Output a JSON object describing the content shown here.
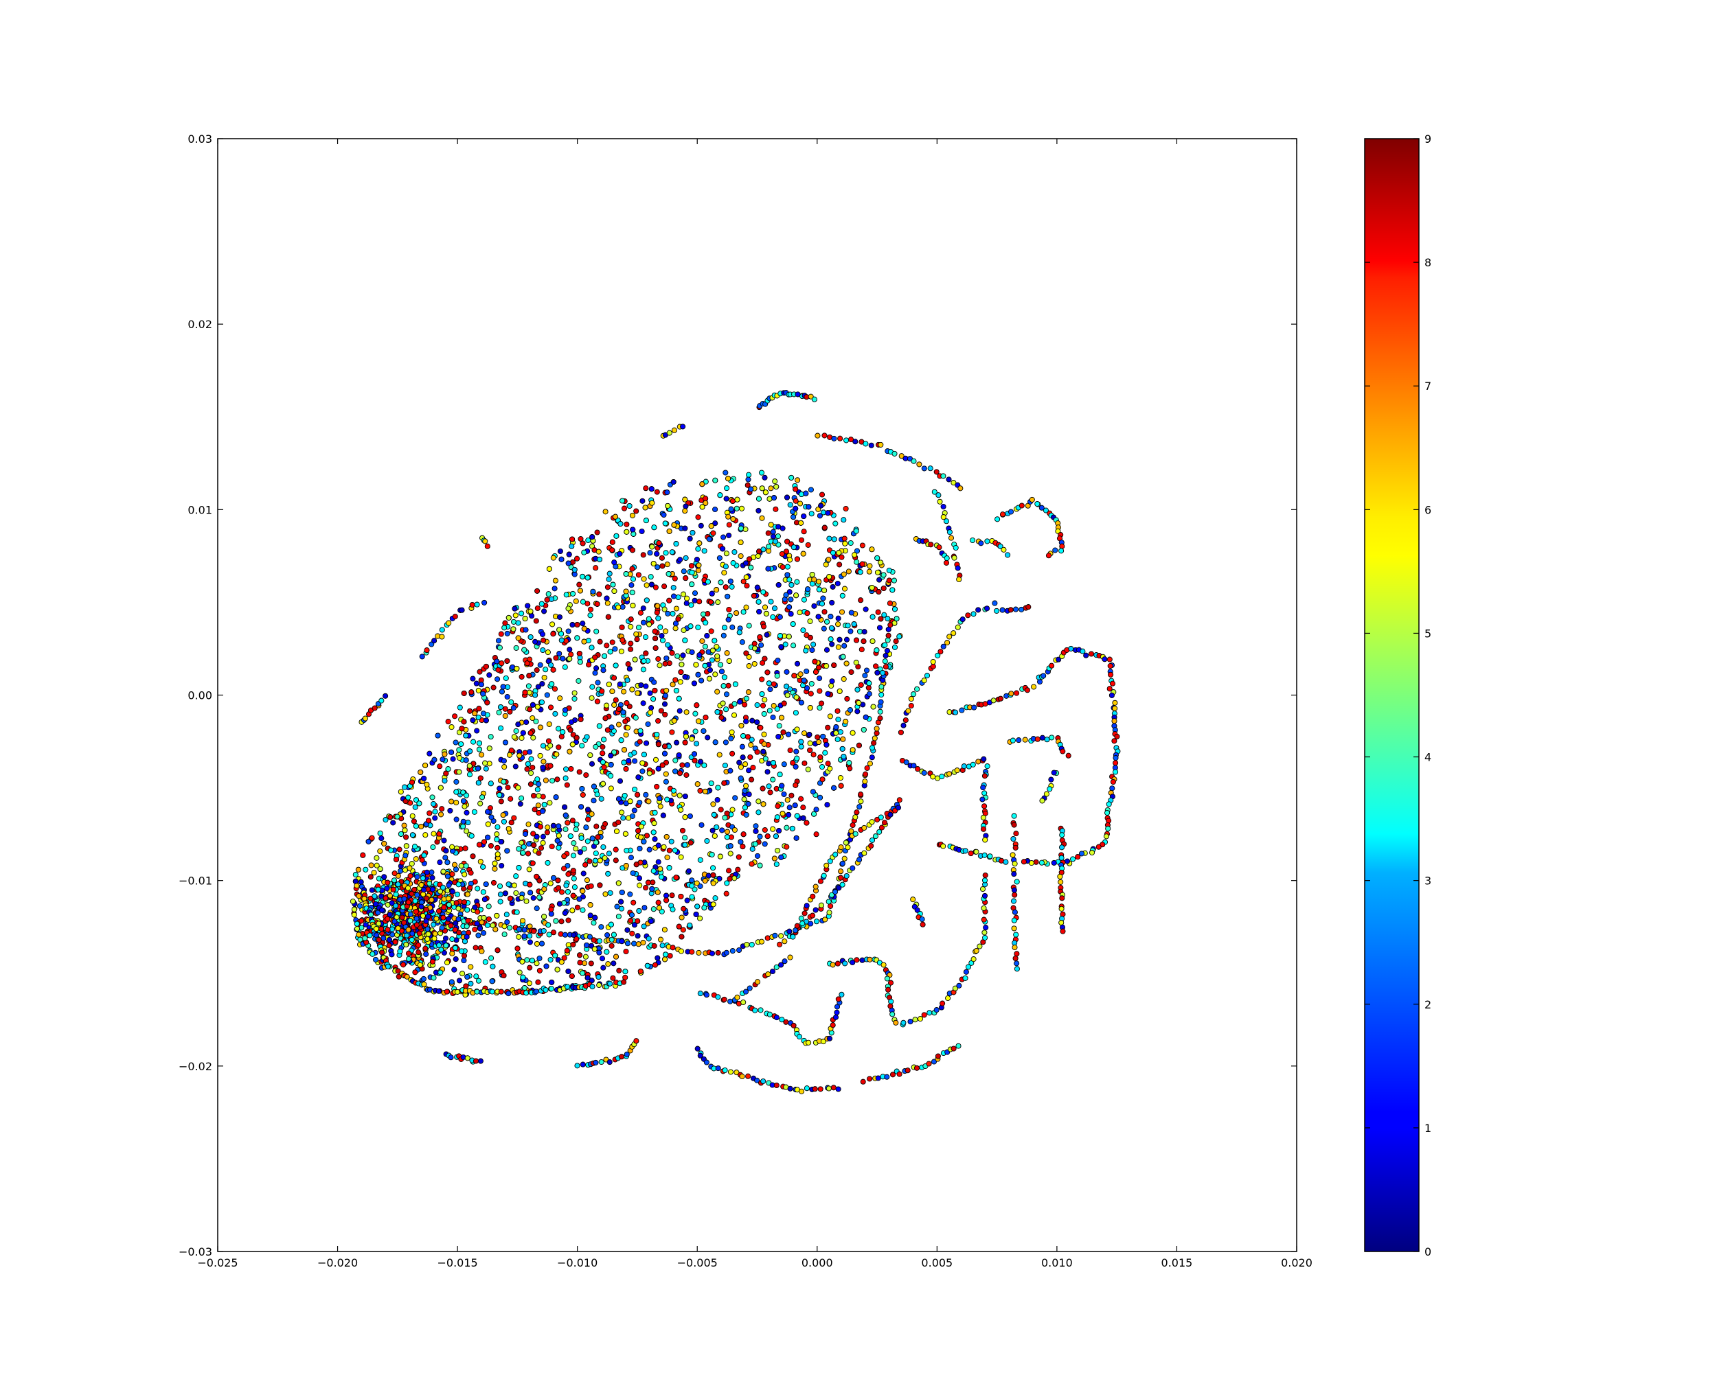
{
  "chart_data": {
    "type": "scatter",
    "title": "",
    "xlabel": "",
    "ylabel": "",
    "xlim": [
      -0.025,
      0.02
    ],
    "ylim": [
      -0.03,
      0.03
    ],
    "x_ticks": [
      "−0.025",
      "−0.020",
      "−0.015",
      "−0.010",
      "−0.005",
      "0.000",
      "0.005",
      "0.010",
      "0.015",
      "0.020"
    ],
    "x_tick_values": [
      -0.025,
      -0.02,
      -0.015,
      -0.01,
      -0.005,
      0.0,
      0.005,
      0.01,
      0.015,
      0.02
    ],
    "y_ticks": [
      "−0.03",
      "−0.02",
      "−0.01",
      "0.00",
      "0.01",
      "0.02",
      "0.03"
    ],
    "y_tick_values": [
      -0.03,
      -0.02,
      -0.01,
      0.0,
      0.01,
      0.02,
      0.03
    ],
    "grid": false,
    "colorbar": {
      "colormap": "jet",
      "range": [
        0,
        9
      ],
      "ticks": [
        "0",
        "1",
        "2",
        "3",
        "4",
        "5",
        "6",
        "7",
        "8",
        "9"
      ],
      "tick_values": [
        0,
        1,
        2,
        3,
        4,
        5,
        6,
        7,
        8,
        9
      ]
    },
    "color_value_range": [
      0,
      9
    ],
    "point_groups": [
      {
        "kind": "dense-cloud",
        "region": "main elongated blob",
        "count": 3400,
        "x_range": [
          -0.0195,
          0.0035
        ],
        "y_range": [
          -0.0165,
          0.012
        ]
      },
      {
        "kind": "dense-core",
        "region": "lower-left of blob",
        "count": 600,
        "center": [
          -0.017,
          -0.012
        ]
      },
      {
        "kind": "curve",
        "points": [
          [
            -0.0165,
            -0.0119
          ],
          [
            -0.01,
            -0.013
          ],
          [
            -0.004,
            -0.014
          ],
          [
            0.0005,
            -0.012
          ],
          [
            0.0025,
            -0.002
          ],
          [
            0.003,
            0.004
          ]
        ],
        "count": 140
      },
      {
        "kind": "curve",
        "points": [
          [
            -0.019,
            -0.0105
          ],
          [
            -0.018,
            -0.0145
          ],
          [
            -0.016,
            -0.016
          ],
          [
            -0.012,
            -0.016
          ],
          [
            -0.008,
            -0.0155
          ]
        ],
        "count": 110
      },
      {
        "kind": "curve",
        "points": [
          [
            -0.019,
            -0.0015
          ],
          [
            -0.018,
            0.0
          ]
        ],
        "count": 10
      },
      {
        "kind": "curve",
        "points": [
          [
            -0.0165,
            0.002
          ],
          [
            -0.015,
            0.0045
          ],
          [
            -0.0138,
            0.005
          ]
        ],
        "count": 18
      },
      {
        "kind": "curve",
        "points": [
          [
            -0.014,
            0.0085
          ],
          [
            -0.0137,
            0.008
          ]
        ],
        "count": 4
      },
      {
        "kind": "curve",
        "points": [
          [
            -0.0155,
            -0.0194
          ],
          [
            -0.014,
            -0.0198
          ]
        ],
        "count": 12
      },
      {
        "kind": "curve",
        "points": [
          [
            -0.01,
            -0.02
          ],
          [
            -0.008,
            -0.0195
          ],
          [
            -0.0075,
            -0.0185
          ]
        ],
        "count": 18
      },
      {
        "kind": "curve",
        "points": [
          [
            -0.005,
            -0.019
          ],
          [
            -0.0045,
            -0.02
          ],
          [
            -0.001,
            -0.0213
          ],
          [
            0.001,
            -0.0212
          ]
        ],
        "count": 36
      },
      {
        "kind": "curve",
        "points": [
          [
            0.002,
            -0.0208
          ],
          [
            0.0045,
            -0.02
          ],
          [
            0.006,
            -0.0188
          ]
        ],
        "count": 24
      },
      {
        "kind": "curve",
        "points": [
          [
            -0.005,
            -0.016
          ],
          [
            -0.0035,
            -0.0165
          ],
          [
            -0.002,
            -0.0172
          ]
        ],
        "count": 16
      },
      {
        "kind": "curve",
        "points": [
          [
            -0.002,
            -0.0172
          ],
          [
            -0.001,
            -0.0178
          ],
          [
            -0.0005,
            -0.0188
          ],
          [
            0.0005,
            -0.0186
          ],
          [
            0.001,
            -0.016
          ]
        ],
        "count": 28
      },
      {
        "kind": "curve",
        "points": [
          [
            0.0005,
            -0.0145
          ],
          [
            0.0025,
            -0.0142
          ],
          [
            0.003,
            -0.015
          ],
          [
            0.003,
            -0.0165
          ],
          [
            0.0033,
            -0.0178
          ]
        ],
        "count": 30
      },
      {
        "kind": "curve",
        "points": [
          [
            0.0035,
            -0.0178
          ],
          [
            0.005,
            -0.017
          ],
          [
            0.006,
            -0.0155
          ],
          [
            0.007,
            -0.013
          ],
          [
            0.007,
            -0.0095
          ]
        ],
        "count": 40
      },
      {
        "kind": "curve",
        "points": [
          [
            -0.0015,
            -0.0135
          ],
          [
            0.0005,
            -0.011
          ],
          [
            0.002,
            -0.0085
          ],
          [
            0.0035,
            -0.0055
          ]
        ],
        "count": 40
      },
      {
        "kind": "curve",
        "points": [
          [
            -0.0035,
            -0.0165
          ],
          [
            -0.0025,
            -0.0155
          ],
          [
            -0.001,
            -0.014
          ]
        ],
        "count": 14
      },
      {
        "kind": "curve",
        "points": [
          [
            -0.001,
            -0.013
          ],
          [
            0.0005,
            -0.009
          ],
          [
            0.0015,
            -0.0075
          ],
          [
            0.0035,
            -0.006
          ]
        ],
        "count": 36
      },
      {
        "kind": "curve",
        "points": [
          [
            0.0035,
            -0.0035
          ],
          [
            0.005,
            -0.0045
          ],
          [
            0.006,
            -0.004
          ],
          [
            0.007,
            -0.0035
          ],
          [
            0.007,
            -0.008
          ]
        ],
        "count": 40
      },
      {
        "kind": "curve",
        "points": [
          [
            0.0035,
            -0.002
          ],
          [
            0.004,
            0.0
          ],
          [
            0.005,
            0.002
          ],
          [
            0.006,
            0.004
          ],
          [
            0.0075,
            0.005
          ]
        ],
        "count": 30
      },
      {
        "kind": "curve",
        "points": [
          [
            0.0055,
            -0.001
          ],
          [
            0.007,
            -0.0005
          ],
          [
            0.009,
            0.0005
          ],
          [
            0.0105,
            0.0025
          ],
          [
            0.0122,
            0.002
          ],
          [
            0.0125,
            -0.003
          ],
          [
            0.012,
            -0.008
          ],
          [
            0.0105,
            -0.009
          ],
          [
            0.0085,
            -0.009
          ]
        ],
        "count": 110
      },
      {
        "kind": "curve",
        "points": [
          [
            0.005,
            -0.008
          ],
          [
            0.0065,
            -0.0085
          ],
          [
            0.008,
            -0.009
          ]
        ],
        "count": 20
      },
      {
        "kind": "curve",
        "points": [
          [
            0.008,
            -0.0025
          ],
          [
            0.01,
            -0.0023
          ],
          [
            0.0105,
            -0.0035
          ]
        ],
        "count": 16
      },
      {
        "kind": "curve",
        "points": [
          [
            0.01,
            -0.004
          ],
          [
            0.0093,
            -0.006
          ]
        ],
        "count": 8
      },
      {
        "kind": "curve",
        "points": [
          [
            0.0102,
            -0.007
          ],
          [
            0.0102,
            -0.013
          ]
        ],
        "count": 24
      },
      {
        "kind": "curve",
        "points": [
          [
            0.0082,
            -0.0065
          ],
          [
            0.0082,
            -0.01
          ],
          [
            0.0083,
            -0.015
          ]
        ],
        "count": 30
      },
      {
        "kind": "curve",
        "points": [
          [
            0.004,
            -0.011
          ],
          [
            0.0045,
            -0.0125
          ]
        ],
        "count": 8
      },
      {
        "kind": "curve",
        "points": [
          [
            -0.0025,
            0.0155
          ],
          [
            -0.0015,
            0.0163
          ],
          [
            0.0,
            0.016
          ]
        ],
        "count": 22
      },
      {
        "kind": "curve",
        "points": [
          [
            0.0,
            0.014
          ],
          [
            0.0025,
            0.0135
          ],
          [
            0.005,
            0.012
          ],
          [
            0.0062,
            0.011
          ]
        ],
        "count": 30
      },
      {
        "kind": "curve",
        "points": [
          [
            0.0075,
            0.0095
          ],
          [
            0.009,
            0.0105
          ],
          [
            0.01,
            0.0095
          ],
          [
            0.0102,
            0.008
          ],
          [
            0.0095,
            0.0075
          ]
        ],
        "count": 30
      },
      {
        "kind": "curve",
        "points": [
          [
            0.005,
            0.011
          ],
          [
            0.0055,
            0.009
          ],
          [
            0.006,
            0.006
          ]
        ],
        "count": 18
      },
      {
        "kind": "curve",
        "points": [
          [
            0.004,
            0.0085
          ],
          [
            0.005,
            0.008
          ],
          [
            0.0055,
            0.007
          ]
        ],
        "count": 12
      },
      {
        "kind": "curve",
        "points": [
          [
            0.0065,
            0.0083
          ],
          [
            0.0075,
            0.0082
          ],
          [
            0.008,
            0.0075
          ]
        ],
        "count": 10
      },
      {
        "kind": "curve",
        "points": [
          [
            0.0075,
            0.0045
          ],
          [
            0.009,
            0.0047
          ]
        ],
        "count": 8
      },
      {
        "kind": "curve",
        "points": [
          [
            -0.0065,
            0.014
          ],
          [
            -0.0055,
            0.0145
          ]
        ],
        "count": 6
      }
    ]
  }
}
